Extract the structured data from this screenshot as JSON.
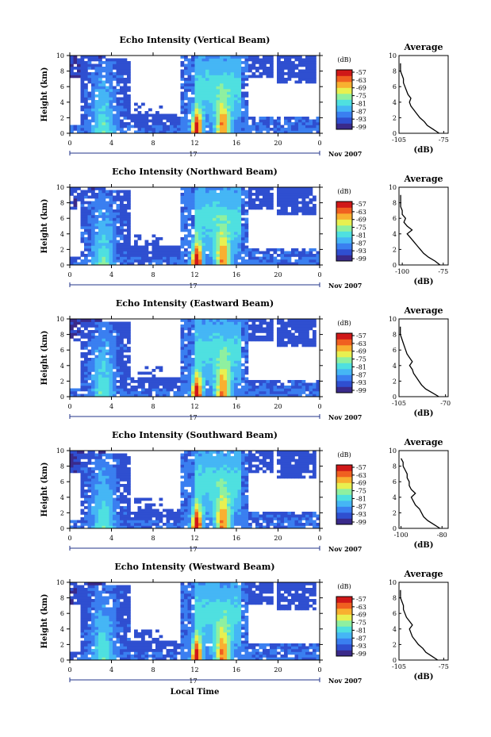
{
  "colorbar": {
    "unit": "(dB)",
    "ticks": [
      "-57",
      "-63",
      "-69",
      "-75",
      "-81",
      "-87",
      "-93",
      "-99"
    ],
    "colors": [
      "#3a2a8a",
      "#2f4fd0",
      "#3a7ff0",
      "#45b6f5",
      "#4fe0e0",
      "#8ff0a0",
      "#e8f050",
      "#f8b030",
      "#f06020",
      "#d01818"
    ]
  },
  "x_axis": {
    "ticks": [
      "0",
      "4",
      "8",
      "12",
      "16",
      "20",
      "0"
    ],
    "day_label": "17",
    "month_label": "Nov 2007",
    "xlabel": "Local Time"
  },
  "y_axis": {
    "label": "Height (km)",
    "ticks": [
      "0",
      "2",
      "4",
      "6",
      "8",
      "10"
    ]
  },
  "avg_common": {
    "title": "Average",
    "xlabel": "(dB)"
  },
  "chart_data": [
    {
      "type": "heatmap",
      "title": "Echo Intensity (Vertical Beam)",
      "ylabel": "Height (km)",
      "xlabel": "",
      "xlim": [
        0,
        24
      ],
      "ylim": [
        0,
        10
      ],
      "avg": {
        "title": "Average",
        "xticks": [
          "-105",
          "-75"
        ],
        "xlim": [
          -105,
          -72
        ],
        "x": [
          -78,
          -82,
          -86,
          -88,
          -91,
          -93,
          -95,
          -97,
          -98,
          -97,
          -99,
          -100,
          -101,
          -102,
          -102,
          -103,
          -104,
          -104,
          -104
        ],
        "y": [
          0,
          0.5,
          1,
          1.5,
          2,
          2.5,
          3,
          3.5,
          4,
          4.5,
          5,
          5.5,
          6,
          6.5,
          7,
          7.5,
          8,
          8.5,
          9
        ]
      }
    },
    {
      "type": "heatmap",
      "title": "Echo Intensity (Northward Beam)",
      "ylabel": "Height (km)",
      "xlabel": "",
      "xlim": [
        0,
        24
      ],
      "ylim": [
        0,
        10
      ],
      "avg": {
        "title": "Average",
        "xticks": [
          "-100",
          "-75"
        ],
        "xlim": [
          -102,
          -72
        ],
        "x": [
          -77,
          -80,
          -84,
          -87,
          -89,
          -91,
          -93,
          -95,
          -97,
          -94,
          -97,
          -99,
          -98,
          -100,
          -100,
          -101,
          -101,
          -101,
          -101
        ],
        "y": [
          0,
          0.5,
          1,
          1.5,
          2,
          2.5,
          3,
          3.5,
          4,
          4.5,
          5,
          5.5,
          6,
          6.5,
          7,
          7.5,
          8,
          8.5,
          9
        ]
      }
    },
    {
      "type": "heatmap",
      "title": "Echo Intensity (Eastward Beam)",
      "ylabel": "Height (km)",
      "xlabel": "",
      "xlim": [
        0,
        24
      ],
      "ylim": [
        0,
        10
      ],
      "avg": {
        "title": "Average",
        "xticks": [
          "-105",
          "-70"
        ],
        "xlim": [
          -105,
          -68
        ],
        "x": [
          -75,
          -80,
          -85,
          -88,
          -90,
          -92,
          -94,
          -95,
          -97,
          -95,
          -97,
          -99,
          -100,
          -101,
          -102,
          -103,
          -104,
          -104,
          -104
        ],
        "y": [
          0,
          0.5,
          1,
          1.5,
          2,
          2.5,
          3,
          3.5,
          4,
          4.5,
          5,
          5.5,
          6,
          6.5,
          7,
          7.5,
          8,
          8.5,
          9
        ]
      }
    },
    {
      "type": "heatmap",
      "title": "Echo Intensity (Southward Beam)",
      "ylabel": "Height (km)",
      "xlabel": "",
      "xlim": [
        0,
        24
      ],
      "ylim": [
        0,
        10
      ],
      "avg": {
        "title": "Average",
        "xticks": [
          "-100",
          "-80"
        ],
        "xlim": [
          -101,
          -77
        ],
        "x": [
          -81,
          -84,
          -87,
          -89,
          -90,
          -91,
          -93,
          -94,
          -95,
          -93,
          -95,
          -96,
          -96,
          -97,
          -97,
          -98,
          -99,
          -99,
          -100
        ],
        "y": [
          0,
          0.5,
          1,
          1.5,
          2,
          2.5,
          3,
          3.5,
          4,
          4.5,
          5,
          5.5,
          6,
          6.5,
          7,
          7.5,
          8,
          8.5,
          9
        ]
      }
    },
    {
      "type": "heatmap",
      "title": "Echo Intensity (Westward Beam)",
      "ylabel": "Height (km)",
      "xlabel": "Local Time",
      "xlim": [
        0,
        24
      ],
      "ylim": [
        0,
        10
      ],
      "avg": {
        "title": "Average",
        "xticks": [
          "-105",
          "-75"
        ],
        "xlim": [
          -105,
          -72
        ],
        "x": [
          -79,
          -83,
          -87,
          -89,
          -92,
          -94,
          -96,
          -97,
          -98,
          -96,
          -98,
          -100,
          -101,
          -102,
          -102,
          -103,
          -104,
          -104,
          -104
        ],
        "y": [
          0,
          0.5,
          1,
          1.5,
          2,
          2.5,
          3,
          3.5,
          4,
          4.5,
          5,
          5.5,
          6,
          6.5,
          7,
          7.5,
          8,
          8.5,
          9
        ]
      }
    }
  ]
}
